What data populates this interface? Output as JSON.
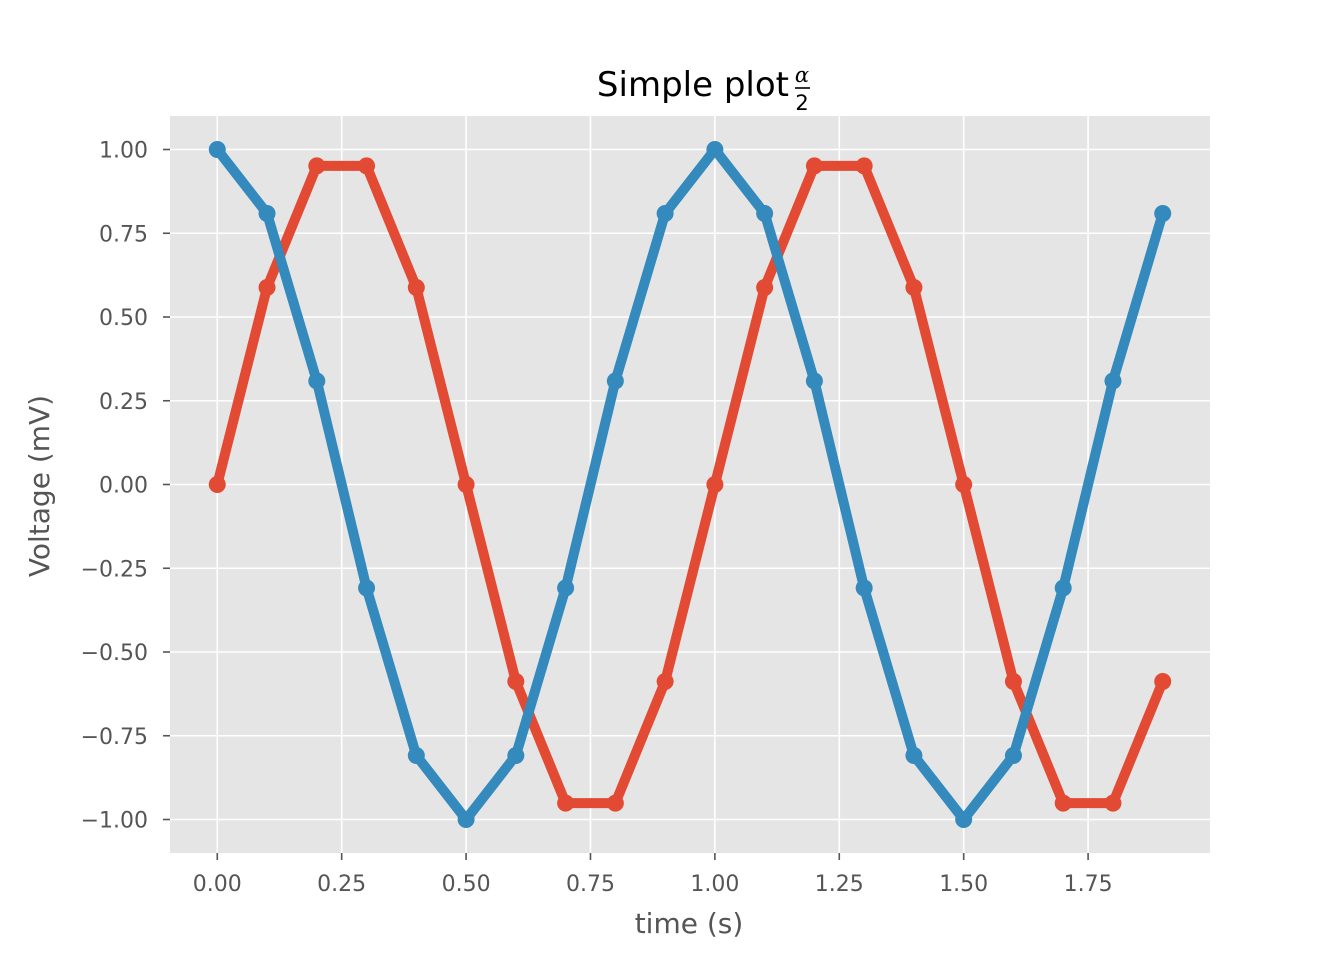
{
  "chart_data": {
    "type": "line",
    "title": "Simple plot",
    "title_fraction": {
      "numerator": "α",
      "denominator": "2"
    },
    "xlabel": "time (s)",
    "ylabel": "Voltage (mV)",
    "xlim": [
      -0.095,
      1.995
    ],
    "ylim": [
      -1.1,
      1.1
    ],
    "xticks": [
      0.0,
      0.25,
      0.5,
      0.75,
      1.0,
      1.25,
      1.5,
      1.75
    ],
    "xtick_labels": [
      "0.00",
      "0.25",
      "0.50",
      "0.75",
      "1.00",
      "1.25",
      "1.50",
      "1.75"
    ],
    "yticks": [
      1.0,
      0.75,
      0.5,
      0.25,
      0.0,
      -0.25,
      -0.5,
      -0.75,
      -1.0
    ],
    "ytick_labels": [
      "1.00",
      "0.75",
      "0.50",
      "0.25",
      "0.00",
      "−0.25",
      "−0.50",
      "−0.75",
      "−1.00"
    ],
    "grid": true,
    "background": "#e5e5e5",
    "grid_color": "#ffffff",
    "x": [
      0.0,
      0.1,
      0.2,
      0.3,
      0.4,
      0.5,
      0.6,
      0.7,
      0.8,
      0.9,
      1.0,
      1.1,
      1.2,
      1.3,
      1.4,
      1.5,
      1.6,
      1.7,
      1.8,
      1.9
    ],
    "series": [
      {
        "color": "#e24a33",
        "marker": "circle",
        "values": [
          0.0,
          0.588,
          0.951,
          0.951,
          0.588,
          0.0,
          -0.588,
          -0.951,
          -0.951,
          -0.588,
          0.0,
          0.588,
          0.951,
          0.951,
          0.588,
          0.0,
          -0.588,
          -0.951,
          -0.951,
          -0.588
        ]
      },
      {
        "color": "#348abd",
        "marker": "circle",
        "values": [
          1.0,
          0.809,
          0.309,
          -0.309,
          -0.809,
          -1.0,
          -0.809,
          -0.309,
          0.309,
          0.809,
          1.0,
          0.809,
          0.309,
          -0.309,
          -0.809,
          -1.0,
          -0.809,
          -0.309,
          0.309,
          0.809
        ]
      }
    ]
  }
}
